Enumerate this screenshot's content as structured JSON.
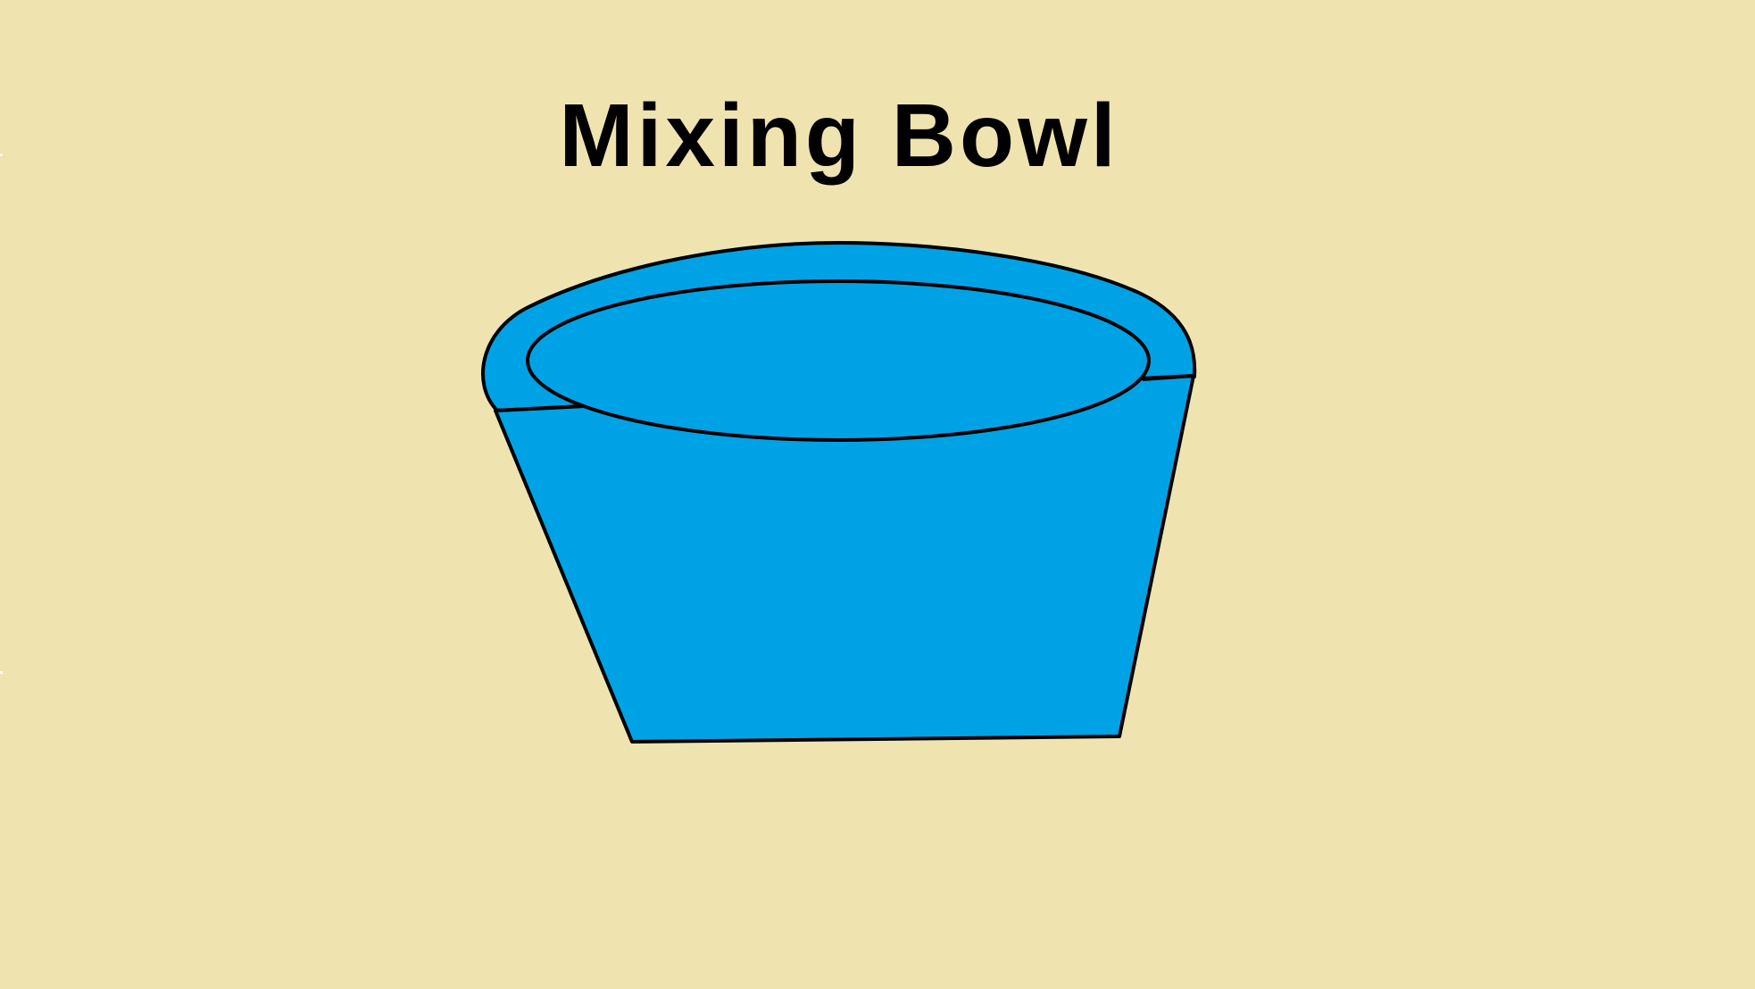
{
  "title": "Mixing Bowl",
  "colors": {
    "background": "#EFE3B0",
    "bowl_fill": "#00A2E6",
    "outline": "#000000",
    "title_text": "#000000"
  },
  "illustration": {
    "subject": "mixing-bowl"
  }
}
